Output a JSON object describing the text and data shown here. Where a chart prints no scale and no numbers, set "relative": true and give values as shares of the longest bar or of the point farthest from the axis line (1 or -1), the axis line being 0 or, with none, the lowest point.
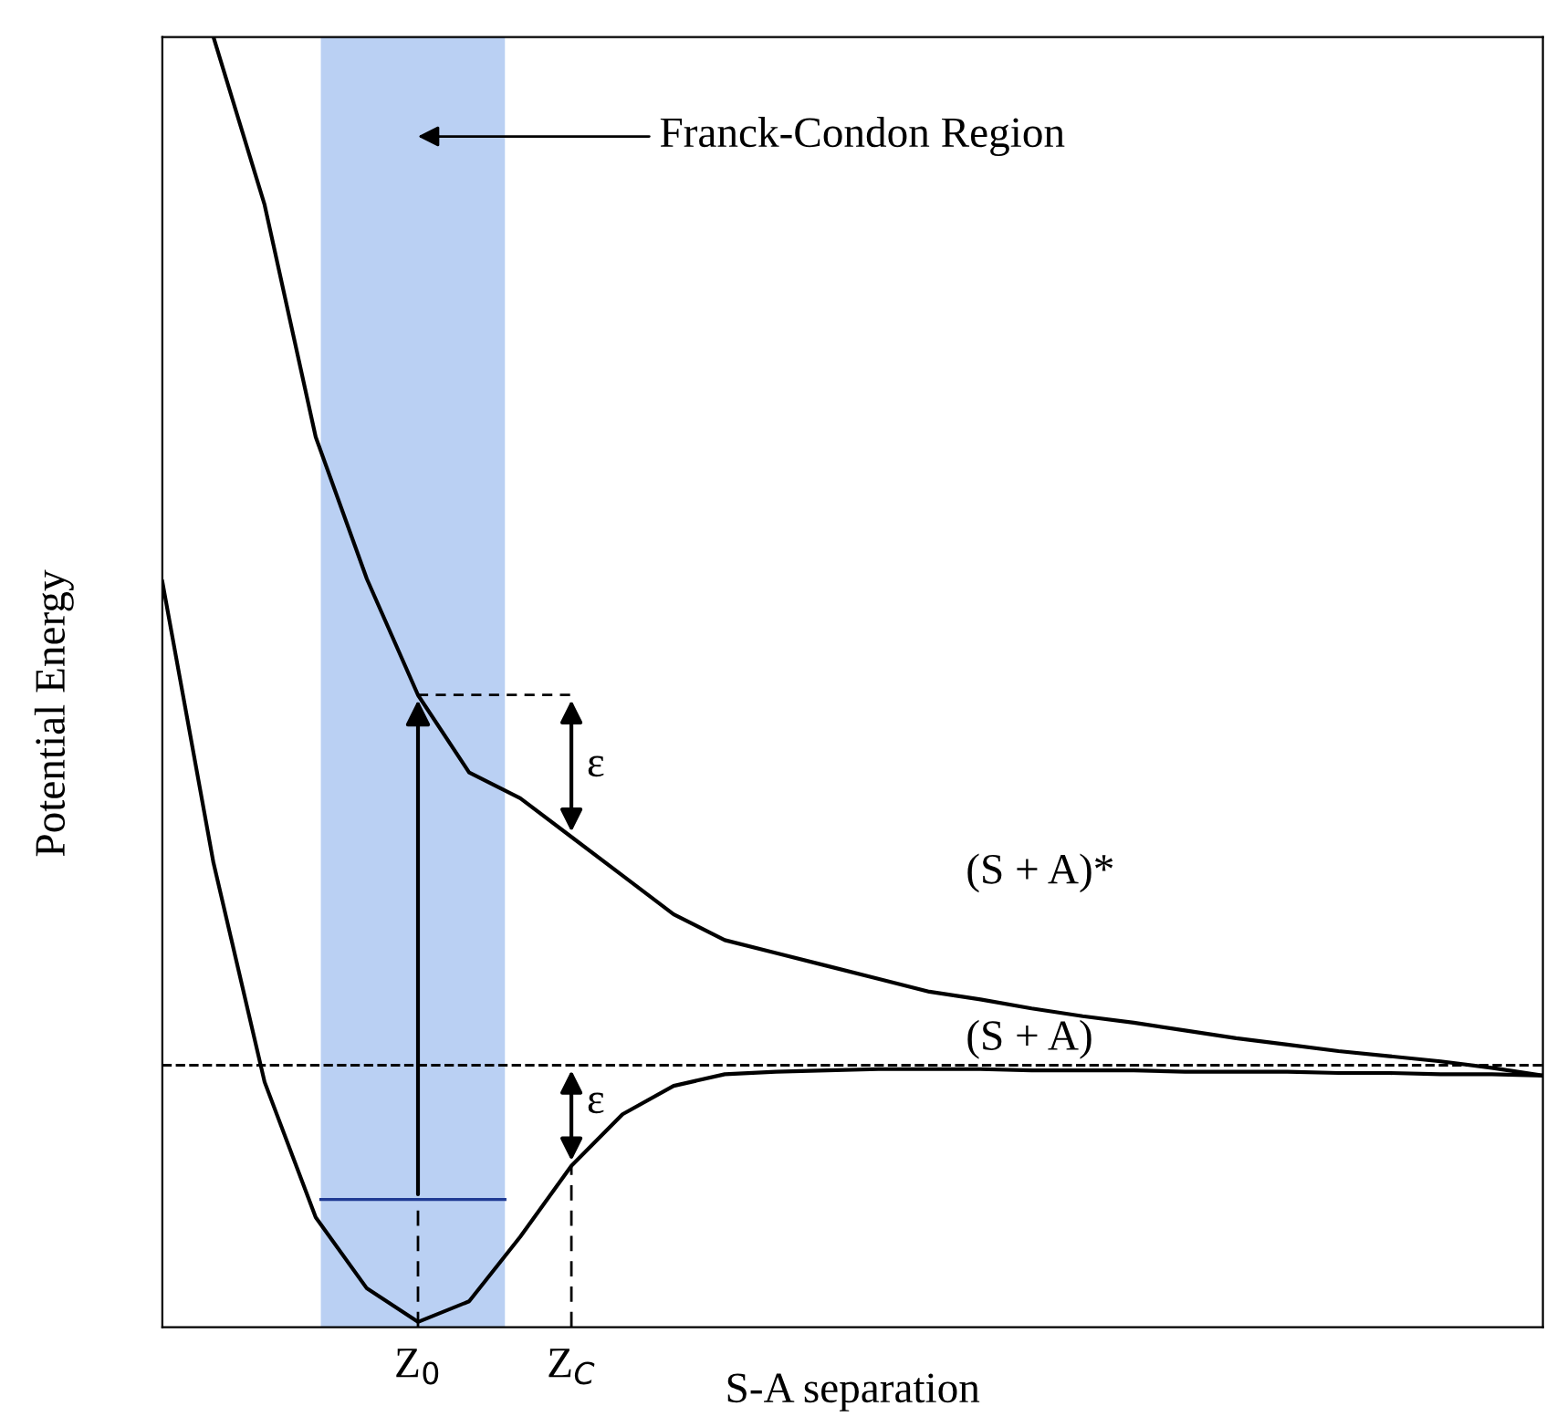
{
  "chart_data": {
    "type": "line",
    "relative": true,
    "xlabel": "S-A separation",
    "ylabel": "Potential Energy",
    "categories": [
      null,
      null,
      null,
      null,
      null,
      "Z$_{0}$",
      null,
      null,
      "Z$_{C}$",
      null,
      null,
      null,
      null,
      null,
      null,
      null,
      null,
      null,
      null,
      null,
      null,
      null,
      null,
      null,
      null,
      null,
      null,
      null
    ],
    "series": [
      {
        "name": "(S + A)*",
        "color": "#000000",
        "values": [
          null,
          1.0,
          0.87,
          0.69,
          0.58,
          0.49,
          0.43,
          0.41,
          0.38,
          0.35,
          0.32,
          0.3,
          0.29,
          0.28,
          0.27,
          0.26,
          0.254,
          0.247,
          0.241,
          0.236,
          0.23,
          0.224,
          0.219,
          0.214,
          0.21,
          0.206,
          0.201,
          0.195
        ]
      },
      {
        "name": "(S + A)",
        "color": "#000000",
        "values": [
          0.578,
          0.36,
          0.19,
          0.085,
          0.03,
          0.004,
          0.02,
          0.07,
          0.125,
          0.165,
          0.187,
          0.196,
          0.198,
          0.199,
          0.2,
          0.2,
          0.2,
          0.199,
          0.199,
          0.199,
          0.198,
          0.198,
          0.198,
          0.197,
          0.197,
          0.196,
          0.196,
          0.195
        ]
      }
    ],
    "ref_lines": [
      {
        "axis": "y",
        "value": 0.203,
        "color": "#000000",
        "line_style": "dashed"
      }
    ],
    "annotations": [
      "ε",
      "ε",
      "Franck-Condon Region"
    ],
    "grid": false,
    "legend": false,
    "marker": "none",
    "line_style": "solid"
  }
}
